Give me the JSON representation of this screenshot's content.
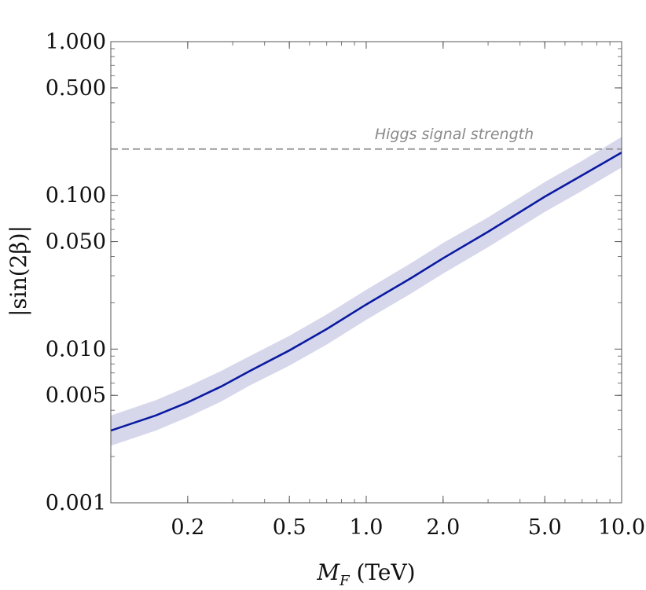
{
  "chart_data": {
    "type": "line",
    "title": "",
    "xlabel": "M_F (TeV)",
    "xlabel_main": "M",
    "xlabel_sub": "F",
    "xlabel_unit": " (TeV)",
    "ylabel": "|sin(2β)|",
    "xscale": "log",
    "yscale": "log",
    "xlim": [
      0.1,
      10.0
    ],
    "ylim": [
      0.001,
      1.0
    ],
    "x_ticks": [
      {
        "value": 0.2,
        "label": "0.2"
      },
      {
        "value": 0.5,
        "label": "0.5"
      },
      {
        "value": 1.0,
        "label": "1.0"
      },
      {
        "value": 2.0,
        "label": "2.0"
      },
      {
        "value": 5.0,
        "label": "5.0"
      },
      {
        "value": 10.0,
        "label": "10.0"
      }
    ],
    "y_ticks": [
      {
        "value": 0.001,
        "label": "0.001"
      },
      {
        "value": 0.005,
        "label": "0.005"
      },
      {
        "value": 0.01,
        "label": "0.010"
      },
      {
        "value": 0.05,
        "label": "0.050"
      },
      {
        "value": 0.1,
        "label": "0.100"
      },
      {
        "value": 0.5,
        "label": "0.500"
      },
      {
        "value": 1.0,
        "label": "1.000"
      }
    ],
    "series": [
      {
        "name": "central",
        "color": "#0a1aa0",
        "x": [
          0.1,
          0.15,
          0.2,
          0.27,
          0.35,
          0.5,
          0.7,
          1.0,
          1.5,
          2.0,
          3.0,
          5.0,
          7.0,
          10.0
        ],
        "y": [
          0.00295,
          0.0037,
          0.0045,
          0.0057,
          0.0072,
          0.0098,
          0.0135,
          0.0195,
          0.029,
          0.039,
          0.058,
          0.098,
          0.135,
          0.19
        ]
      }
    ],
    "band": {
      "name": "uncertainty band",
      "color": "#c9c9e6",
      "x": [
        0.1,
        0.15,
        0.2,
        0.27,
        0.35,
        0.5,
        0.7,
        1.0,
        1.5,
        2.0,
        3.0,
        5.0,
        7.0,
        10.0
      ],
      "lower": [
        0.00235,
        0.00295,
        0.0036,
        0.00455,
        0.0058,
        0.0078,
        0.0107,
        0.0155,
        0.023,
        0.031,
        0.046,
        0.078,
        0.107,
        0.152
      ],
      "upper": [
        0.0037,
        0.00465,
        0.0057,
        0.0072,
        0.009,
        0.0122,
        0.0168,
        0.0243,
        0.0363,
        0.049,
        0.072,
        0.122,
        0.168,
        0.24
      ]
    },
    "reference_line": {
      "label": "Higgs signal strength",
      "y": 0.2,
      "color": "#9a9a9a",
      "style": "dashed"
    }
  }
}
